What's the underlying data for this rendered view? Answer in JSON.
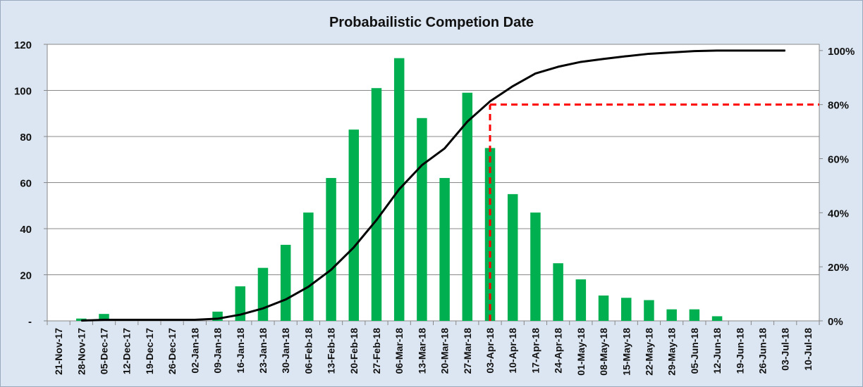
{
  "chart_data": {
    "type": "bar",
    "title": "Probabailistic Competion Date",
    "xlabel": "",
    "ylabel": "",
    "categories": [
      "21-Nov-17",
      "28-Nov-17",
      "05-Dec-17",
      "12-Dec-17",
      "19-Dec-17",
      "26-Dec-17",
      "02-Jan-18",
      "09-Jan-18",
      "16-Jan-18",
      "23-Jan-18",
      "30-Jan-18",
      "06-Feb-18",
      "13-Feb-18",
      "20-Feb-18",
      "27-Feb-18",
      "06-Mar-18",
      "13-Mar-18",
      "20-Mar-18",
      "27-Mar-18",
      "03-Apr-18",
      "10-Apr-18",
      "17-Apr-18",
      "24-Apr-18",
      "01-May-18",
      "08-May-18",
      "15-May-18",
      "22-May-18",
      "29-May-18",
      "05-Jun-18",
      "12-Jun-18",
      "19-Jun-18",
      "26-Jun-18",
      "03-Jul-18",
      "10-Jul-18"
    ],
    "series": [
      {
        "type": "bar",
        "axis": "left",
        "color": "#00b050",
        "values": [
          0,
          1,
          3,
          0,
          0,
          0,
          0,
          4,
          15,
          23,
          33,
          47,
          62,
          83,
          101,
          114,
          88,
          62,
          99,
          75,
          55,
          47,
          25,
          18,
          11,
          10,
          9,
          5,
          5,
          2,
          0,
          0,
          0,
          0
        ]
      },
      {
        "type": "line",
        "axis": "right",
        "color": "#000000",
        "values": [
          null,
          0.1,
          0.4,
          0.4,
          0.4,
          0.4,
          0.4,
          0.8,
          2.3,
          4.6,
          7.9,
          12.6,
          18.9,
          27.2,
          37.3,
          48.7,
          57.6,
          63.8,
          73.7,
          81.2,
          86.8,
          91.5,
          94.0,
          95.8,
          96.9,
          97.9,
          98.8,
          99.3,
          99.8,
          100,
          100,
          100,
          100,
          null
        ]
      }
    ],
    "ylim": [
      0,
      120
    ],
    "yticks": [
      0,
      20,
      40,
      60,
      80,
      100,
      120
    ],
    "ytick_labels": [
      "-",
      "20",
      "40",
      "60",
      "80",
      "100",
      "120"
    ],
    "y2lim": [
      0,
      102.3
    ],
    "y2ticks": [
      0,
      20,
      40,
      60,
      80,
      100
    ],
    "y2tick_labels": [
      "0%",
      "20%",
      "40%",
      "60%",
      "80%",
      "100%"
    ],
    "grid": true,
    "legend": "none",
    "threshold": {
      "percent": 80,
      "category": "03-Apr-18",
      "color": "#ff0000",
      "style": "dashed"
    }
  }
}
